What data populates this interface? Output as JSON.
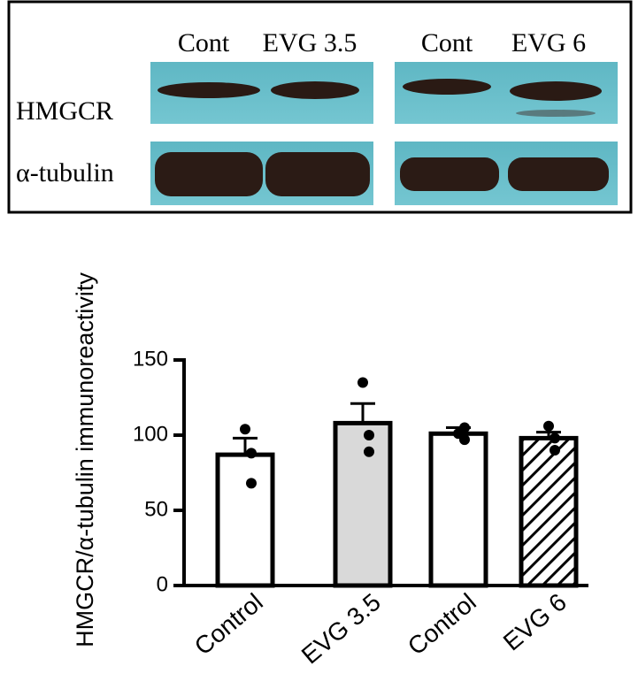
{
  "blot": {
    "lane_labels": [
      "Cont",
      "EVG 3.5",
      "Cont",
      "EVG 6"
    ],
    "row_labels": [
      "HMGCR",
      "α-tubulin"
    ]
  },
  "chart_data": {
    "type": "bar",
    "y_label": "HMGCR/α-tubulin immunoreactivity",
    "categories": [
      "Control",
      "EVG 3.5",
      "Control",
      "EVG 6"
    ],
    "values": [
      87,
      108,
      101,
      98
    ],
    "errors": [
      11,
      13,
      4,
      4
    ],
    "points": [
      [
        104,
        88,
        68
      ],
      [
        135,
        100,
        89
      ],
      [
        101,
        105,
        97
      ],
      [
        106,
        98,
        90
      ]
    ],
    "colors": [
      "#ffffff",
      "#d9d9d9",
      "#ffffff",
      "#ffffff"
    ],
    "hatch": [
      false,
      false,
      false,
      true
    ],
    "ylim": [
      0,
      150
    ],
    "yticks": [
      0,
      50,
      100,
      150
    ]
  }
}
